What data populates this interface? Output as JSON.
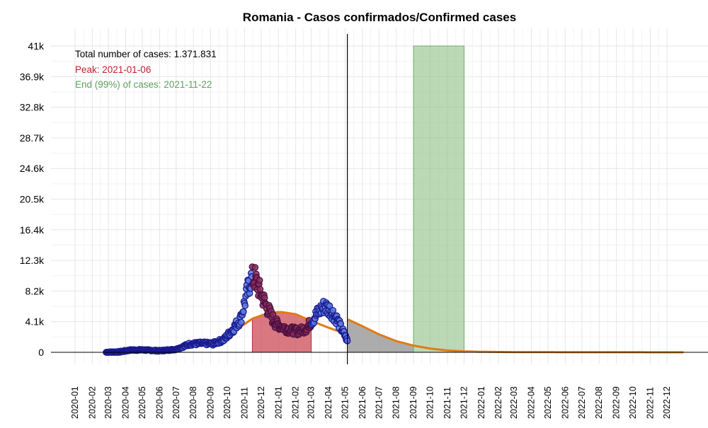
{
  "chart_data": {
    "type": "scatter",
    "title": "Romania - Casos confirmados/Confirmed cases",
    "xlabel": "",
    "ylabel": "",
    "x_range": [
      "2020-01-01",
      "2022-12-31"
    ],
    "ylim": [
      0,
      41000
    ],
    "y_ticks": [
      0,
      4100,
      8200,
      12300,
      16400,
      20500,
      24600,
      28700,
      32800,
      36900,
      41000
    ],
    "y_tick_labels": [
      "0",
      "4.1k",
      "8.2k",
      "12.3k",
      "16.4k",
      "20.5k",
      "24.6k",
      "28.7k",
      "32.8k",
      "36.9k",
      "41k"
    ],
    "x_tick_labels": [
      "2020-01",
      "2020-02",
      "2020-03",
      "2020-04",
      "2020-05",
      "2020-06",
      "2020-07",
      "2020-08",
      "2020-09",
      "2020-10",
      "2020-11",
      "2020-12",
      "2021-01",
      "2021-02",
      "2021-03",
      "2021-04",
      "2021-05",
      "2021-06",
      "2021-07",
      "2021-08",
      "2021-09",
      "2021-10",
      "2021-11",
      "2021-12",
      "2022-01",
      "2022-02",
      "2022-03",
      "2022-04",
      "2022-05",
      "2022-06",
      "2022-07",
      "2022-08",
      "2022-09",
      "2022-10",
      "2022-11",
      "2022-12"
    ],
    "grid": true,
    "annotations": {
      "total": "Total number of cases: 1.371.831",
      "peak": "Peak: 2021-01-06",
      "end": "End (99%) of cases: 2021-11-22"
    },
    "colors": {
      "points_fill": "#5b79e0",
      "points_edge": "#1a1a8c",
      "points_in_peak_fill": "#8a2a5a",
      "points_in_peak_edge": "#4a1040",
      "fit_line": "#e07b16",
      "peak_band": "#cc4b55",
      "end_band": "#8fbf86",
      "projection_band": "#9e9e9e",
      "peak_text": "#c0202e",
      "end_text": "#5fa05f",
      "cutoff_line": "#000000"
    },
    "cutoff_date": "2021-05-05",
    "peak_band": {
      "start": "2020-11-15",
      "end": "2021-03-01"
    },
    "end_band": {
      "start": "2021-09-01",
      "end": "2021-12-01"
    },
    "daily_series_keypoints": [
      [
        "2020-02-26",
        0
      ],
      [
        "2020-03-20",
        50
      ],
      [
        "2020-04-10",
        300
      ],
      [
        "2020-05-01",
        320
      ],
      [
        "2020-06-01",
        200
      ],
      [
        "2020-07-01",
        400
      ],
      [
        "2020-07-25",
        1100
      ],
      [
        "2020-08-15",
        1200
      ],
      [
        "2020-09-05",
        1150
      ],
      [
        "2020-09-25",
        1700
      ],
      [
        "2020-10-10",
        3000
      ],
      [
        "2020-10-25",
        4500
      ],
      [
        "2020-11-05",
        7800
      ],
      [
        "2020-11-12",
        9800
      ],
      [
        "2020-11-20",
        9900
      ],
      [
        "2020-11-28",
        8300
      ],
      [
        "2020-12-10",
        6200
      ],
      [
        "2020-12-25",
        4000
      ],
      [
        "2021-01-05",
        3500
      ],
      [
        "2021-01-20",
        3000
      ],
      [
        "2021-02-05",
        2800
      ],
      [
        "2021-02-20",
        3200
      ],
      [
        "2021-03-05",
        4500
      ],
      [
        "2021-03-15",
        5500
      ],
      [
        "2021-03-25",
        6200
      ],
      [
        "2021-04-05",
        5600
      ],
      [
        "2021-04-15",
        4600
      ],
      [
        "2021-04-25",
        3000
      ],
      [
        "2021-05-01",
        2200
      ],
      [
        "2021-05-05",
        1500
      ]
    ],
    "fit_curve_keypoints": [
      [
        "2020-02-26",
        100
      ],
      [
        "2020-04-01",
        150
      ],
      [
        "2020-04-10",
        500
      ],
      [
        "2020-05-15",
        400
      ],
      [
        "2020-06-15",
        380
      ],
      [
        "2020-07-15",
        700
      ],
      [
        "2020-08-15",
        1100
      ],
      [
        "2020-09-15",
        1500
      ],
      [
        "2020-10-15",
        2900
      ],
      [
        "2020-11-15",
        4500
      ],
      [
        "2020-12-15",
        5300
      ],
      [
        "2021-01-06",
        5400
      ],
      [
        "2021-02-01",
        5100
      ],
      [
        "2021-03-01",
        4200
      ],
      [
        "2021-04-01",
        3300
      ],
      [
        "2021-05-05",
        2400
      ],
      [
        "2021-05-06",
        4400
      ],
      [
        "2021-06-01",
        3500
      ],
      [
        "2021-07-01",
        2400
      ],
      [
        "2021-08-01",
        1500
      ],
      [
        "2021-09-01",
        900
      ],
      [
        "2021-10-01",
        500
      ],
      [
        "2021-11-01",
        250
      ],
      [
        "2021-12-01",
        130
      ],
      [
        "2022-01-01",
        70
      ],
      [
        "2022-03-01",
        30
      ],
      [
        "2022-06-01",
        10
      ],
      [
        "2022-12-31",
        2
      ]
    ]
  }
}
